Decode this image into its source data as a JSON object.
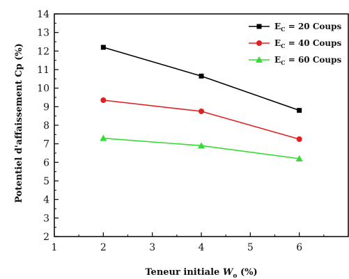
{
  "chart_data": {
    "type": "line",
    "title": "",
    "xlabel": {
      "main": "Teneur initiale ",
      "symbol": "W",
      "sub": "o",
      "unit": " (%)"
    },
    "ylabel": "Potentiel d'affaissement Cp (%)",
    "xlim": [
      1,
      7
    ],
    "ylim": [
      2,
      14
    ],
    "xticks": [
      1,
      2,
      3,
      4,
      5,
      6
    ],
    "yticks": [
      2,
      3,
      4,
      5,
      6,
      7,
      8,
      9,
      10,
      11,
      12,
      13,
      14
    ],
    "grid": false,
    "legend_position": "top-right",
    "x": [
      2,
      4,
      6
    ],
    "series": [
      {
        "name": "20 Coups",
        "legend_prefix": "E",
        "legend_sub": "C",
        "legend_text": " = 20 Coups",
        "marker": "square",
        "color": "#000000",
        "values": [
          12.2,
          10.65,
          8.8
        ]
      },
      {
        "name": "40 Coups",
        "legend_prefix": "E",
        "legend_sub": "C",
        "legend_text": " = 40 Coups",
        "marker": "circle",
        "color": "#e02020",
        "values": [
          9.35,
          8.75,
          7.25
        ]
      },
      {
        "name": "60 Coups",
        "legend_prefix": "E",
        "legend_sub": "C",
        "legend_text": " = 60 Coups",
        "marker": "triangle",
        "color": "#33dd33",
        "values": [
          7.3,
          6.9,
          6.2
        ]
      }
    ]
  }
}
